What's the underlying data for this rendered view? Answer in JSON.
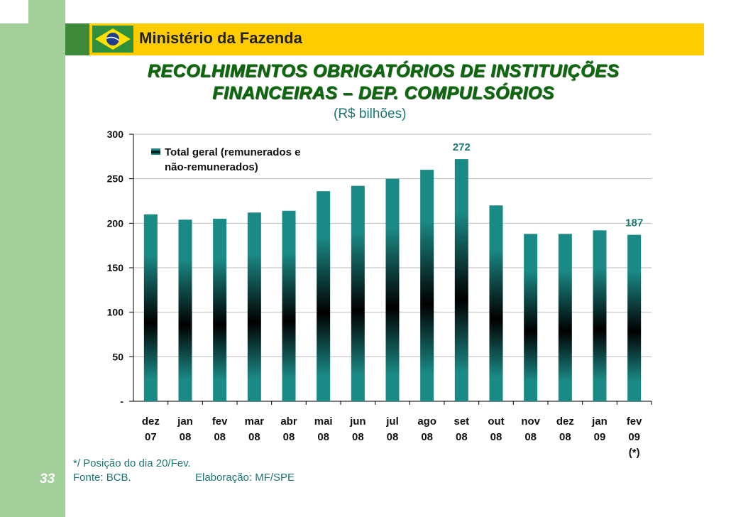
{
  "header": {
    "ministry": "Ministério da Fazenda",
    "title_line1": "RECOLHIMENTOS OBRIGATÓRIOS DE INSTITUIÇÕES",
    "title_line2": "FINANCEIRAS – DEP. COMPULSÓRIOS",
    "subtitle": "(R$ bilhões)"
  },
  "colors": {
    "bar_teal": "#1a8a86",
    "label_teal": "#1e7a76",
    "header_yellow": "#ffcc00",
    "band_green": "#a2cf9a"
  },
  "chart_data": {
    "type": "bar",
    "title": "RECOLHIMENTOS OBRIGATÓRIOS DE INSTITUIÇÕES FINANCEIRAS – DEP. COMPULSÓRIOS",
    "unit": "(R$ bilhões)",
    "categories": [
      [
        "dez",
        "07"
      ],
      [
        "jan",
        "08"
      ],
      [
        "fev",
        "08"
      ],
      [
        "mar",
        "08"
      ],
      [
        "abr",
        "08"
      ],
      [
        "mai",
        "08"
      ],
      [
        "jun",
        "08"
      ],
      [
        "jul",
        "08"
      ],
      [
        "ago",
        "08"
      ],
      [
        "set",
        "08"
      ],
      [
        "out",
        "08"
      ],
      [
        "nov",
        "08"
      ],
      [
        "dez",
        "08"
      ],
      [
        "jan",
        "09"
      ],
      [
        "fev",
        "09",
        "(*)"
      ]
    ],
    "series": [
      {
        "name": "Total geral (remunerados e não-remunerados)",
        "legend_lines": [
          "Total geral (remunerados e",
          "não-remunerados)"
        ],
        "values": [
          210,
          204,
          205,
          212,
          214,
          236,
          242,
          250,
          260,
          272,
          220,
          188,
          188,
          192,
          187
        ]
      }
    ],
    "data_labels": [
      {
        "index": 9,
        "text": "272"
      },
      {
        "index": 14,
        "text": "187"
      }
    ],
    "ylim": [
      0,
      300
    ],
    "yticks": [
      0,
      50,
      100,
      150,
      200,
      250,
      300
    ],
    "ytick_labels": [
      "-",
      "50",
      "100",
      "150",
      "200",
      "250",
      "300"
    ],
    "grid": true,
    "legend_position": "top-left",
    "xlabel": "",
    "ylabel": ""
  },
  "footer": {
    "page_number": "33",
    "note": "*/ Posição do dia 20/Fev.",
    "source": "Fonte: BCB.",
    "elaboration": "Elaboração: MF/SPE"
  }
}
